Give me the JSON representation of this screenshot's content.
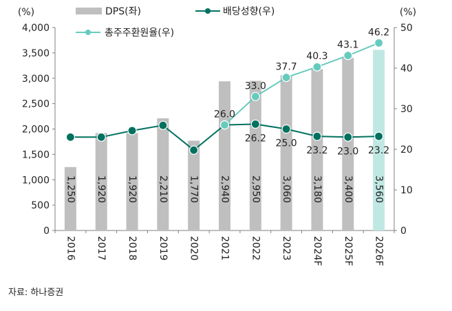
{
  "chart_data": {
    "type": "bar+line",
    "categories": [
      "2016",
      "2017",
      "2018",
      "2019",
      "2020",
      "2021",
      "2022",
      "2023",
      "2024F",
      "2025F",
      "2026F"
    ],
    "left_axis": {
      "unit_label": "(%)",
      "range": [
        0,
        4000
      ],
      "ticks": [
        "0",
        "500",
        "1,000",
        "1,500",
        "2,000",
        "2,500",
        "3,000",
        "3,500",
        "4,000"
      ]
    },
    "right_axis": {
      "unit_label": "(%)",
      "range": [
        0,
        50
      ],
      "ticks": [
        "0",
        "10",
        "20",
        "30",
        "40",
        "50"
      ]
    },
    "series": [
      {
        "name": "DPS(좌)",
        "type": "bar",
        "axis": "left",
        "values": [
          1250,
          1920,
          1920,
          2210,
          1770,
          2940,
          2950,
          3060,
          3180,
          3400,
          3560
        ],
        "labels": [
          "1,250",
          "1,920",
          "1,920",
          "2,210",
          "1,770",
          "2,940",
          "2,950",
          "3,060",
          "3,180",
          "3,400",
          "3,560"
        ],
        "color": "#bfbfbf",
        "highlight_color": "#c0e8e3"
      },
      {
        "name": "배당성향(우)",
        "type": "line",
        "axis": "right",
        "values": [
          23.0,
          23.0,
          24.6,
          25.9,
          19.8,
          26.0,
          26.2,
          25.0,
          23.2,
          23.0,
          23.2
        ],
        "labels": [
          "",
          "",
          "",
          "",
          "",
          "",
          "26.2",
          "25.0",
          "23.2",
          "23.0",
          "23.2"
        ],
        "color": "#00715f"
      },
      {
        "name": "총주주환원율(우)",
        "type": "line",
        "axis": "right",
        "values": [
          null,
          null,
          null,
          null,
          null,
          26.0,
          33.0,
          37.7,
          40.3,
          43.1,
          46.2
        ],
        "labels": [
          "",
          "",
          "",
          "",
          "",
          "26.0",
          "33.0",
          "37.7",
          "40.3",
          "43.1",
          "46.2"
        ],
        "color": "#66cbbd"
      }
    ],
    "legend": "top"
  },
  "source": "자료: 하나증권"
}
